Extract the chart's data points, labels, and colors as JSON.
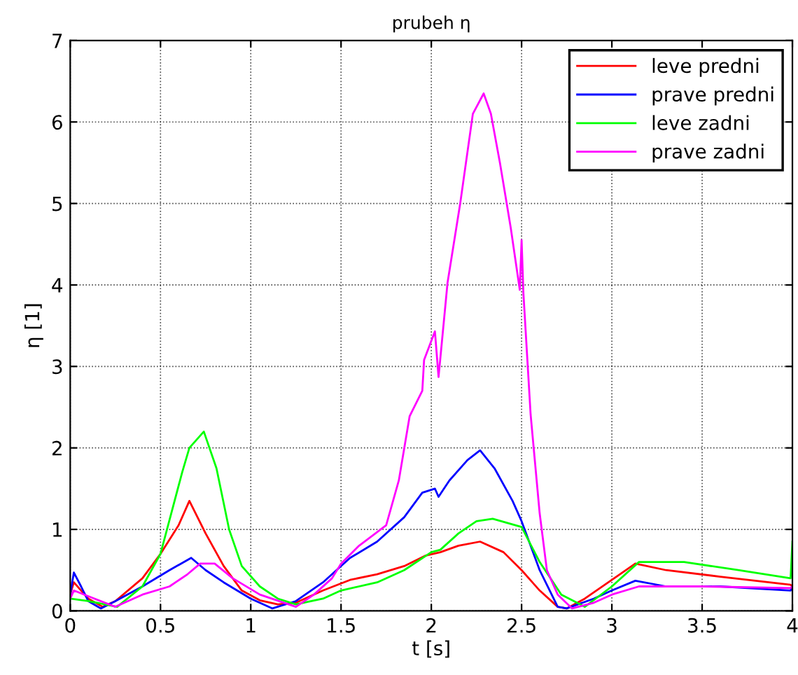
{
  "chart_data": {
    "type": "line",
    "title": "prubeh η",
    "xlabel": "t [s]",
    "ylabel": "η [1]",
    "xlim": [
      0,
      4
    ],
    "ylim": [
      0,
      7
    ],
    "xticks": [
      0,
      0.5,
      1,
      1.5,
      2,
      2.5,
      3,
      3.5,
      4
    ],
    "yticks": [
      0,
      1,
      2,
      3,
      4,
      5,
      6,
      7
    ],
    "grid": true,
    "legend": "top right",
    "line_style": "solid",
    "marker": "none",
    "series": [
      {
        "name": "leve predni",
        "color": "#ff0000",
        "x": [
          0,
          0.02,
          0.1,
          0.18,
          0.25,
          0.4,
          0.5,
          0.6,
          0.66,
          0.75,
          0.85,
          0.95,
          1.05,
          1.15,
          1.25,
          1.4,
          1.55,
          1.7,
          1.85,
          1.97,
          2.05,
          2.15,
          2.27,
          2.4,
          2.5,
          2.6,
          2.7,
          2.75,
          2.85,
          3.0,
          3.13,
          3.3,
          3.6,
          3.99,
          4.0
        ],
        "values": [
          0.2,
          0.35,
          0.15,
          0.05,
          0.12,
          0.4,
          0.7,
          1.05,
          1.35,
          0.95,
          0.55,
          0.25,
          0.13,
          0.08,
          0.1,
          0.25,
          0.38,
          0.45,
          0.55,
          0.68,
          0.72,
          0.8,
          0.85,
          0.72,
          0.5,
          0.25,
          0.05,
          0.03,
          0.15,
          0.38,
          0.58,
          0.5,
          0.42,
          0.32,
          0.3
        ]
      },
      {
        "name": "prave predni",
        "color": "#0000ff",
        "x": [
          0,
          0.02,
          0.06,
          0.1,
          0.17,
          0.25,
          0.4,
          0.55,
          0.67,
          0.75,
          0.85,
          1.0,
          1.12,
          1.25,
          1.4,
          1.55,
          1.7,
          1.85,
          1.95,
          2.02,
          2.04,
          2.1,
          2.2,
          2.27,
          2.35,
          2.45,
          2.5,
          2.6,
          2.7,
          2.75,
          2.9,
          3.0,
          3.13,
          3.3,
          3.6,
          3.99,
          4.0
        ],
        "values": [
          0.2,
          0.47,
          0.3,
          0.12,
          0.03,
          0.12,
          0.3,
          0.5,
          0.65,
          0.5,
          0.35,
          0.15,
          0.03,
          0.12,
          0.35,
          0.65,
          0.85,
          1.15,
          1.45,
          1.5,
          1.4,
          1.6,
          1.85,
          1.97,
          1.75,
          1.35,
          1.1,
          0.5,
          0.05,
          0.03,
          0.15,
          0.25,
          0.37,
          0.3,
          0.3,
          0.25,
          0.3
        ]
      },
      {
        "name": "leve zadni",
        "color": "#00ff00",
        "x": [
          0,
          0.1,
          0.26,
          0.4,
          0.5,
          0.62,
          0.66,
          0.74,
          0.81,
          0.88,
          0.95,
          1.05,
          1.15,
          1.25,
          1.4,
          1.5,
          1.7,
          1.85,
          2.0,
          2.05,
          2.15,
          2.25,
          2.34,
          2.5,
          2.6,
          2.72,
          2.85,
          3.0,
          3.15,
          3.4,
          3.7,
          3.99,
          4.0
        ],
        "values": [
          0.15,
          0.12,
          0.05,
          0.3,
          0.7,
          1.7,
          2.0,
          2.2,
          1.75,
          1.0,
          0.55,
          0.3,
          0.15,
          0.08,
          0.15,
          0.25,
          0.35,
          0.5,
          0.72,
          0.75,
          0.95,
          1.1,
          1.13,
          1.03,
          0.6,
          0.2,
          0.05,
          0.3,
          0.6,
          0.6,
          0.5,
          0.4,
          0.85
        ]
      },
      {
        "name": "prave zadni",
        "color": "#ff00ff",
        "x": [
          0,
          0.02,
          0.1,
          0.25,
          0.4,
          0.55,
          0.65,
          0.72,
          0.8,
          0.9,
          1.05,
          1.25,
          1.35,
          1.45,
          1.5,
          1.6,
          1.75,
          1.82,
          1.88,
          1.95,
          1.96,
          2.02,
          2.04,
          2.09,
          2.16,
          2.23,
          2.29,
          2.33,
          2.38,
          2.44,
          2.49,
          2.5,
          2.51,
          2.55,
          2.6,
          2.64,
          2.7,
          2.78,
          2.9,
          3.0,
          3.15,
          3.5,
          3.99,
          4.0
        ],
        "values": [
          0.15,
          0.25,
          0.18,
          0.05,
          0.2,
          0.3,
          0.45,
          0.58,
          0.58,
          0.4,
          0.2,
          0.05,
          0.2,
          0.4,
          0.58,
          0.8,
          1.05,
          1.6,
          2.39,
          2.7,
          3.08,
          3.43,
          2.87,
          4.03,
          5.0,
          6.1,
          6.35,
          6.1,
          5.5,
          4.7,
          3.94,
          4.55,
          3.9,
          2.41,
          1.2,
          0.5,
          0.2,
          0.03,
          0.1,
          0.2,
          0.3,
          0.3,
          0.28,
          0.3
        ]
      }
    ]
  }
}
